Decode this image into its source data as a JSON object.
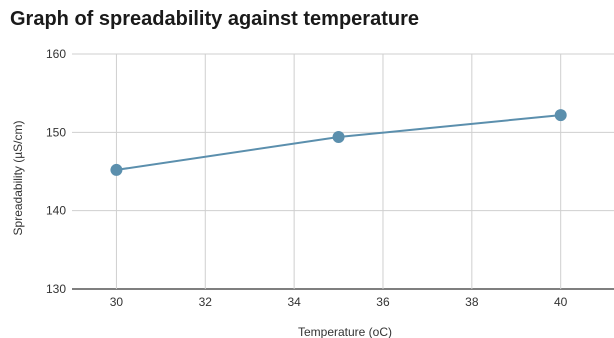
{
  "chart_data": {
    "type": "line",
    "title": "Graph of spreadability against temperature",
    "xlabel": "Temperature (oC)",
    "ylabel": "Spreadability (µS/cm)",
    "xlim": [
      29,
      41.2
    ],
    "ylim": [
      130,
      160
    ],
    "x_ticks": [
      30,
      32,
      34,
      36,
      38,
      40
    ],
    "y_ticks": [
      130,
      140,
      150,
      160
    ],
    "grid": true,
    "series": [
      {
        "color": "#5b8fad",
        "points": [
          {
            "x": 30,
            "y": 145.2
          },
          {
            "x": 35,
            "y": 149.4
          },
          {
            "x": 40,
            "y": 152.2
          }
        ]
      }
    ]
  }
}
